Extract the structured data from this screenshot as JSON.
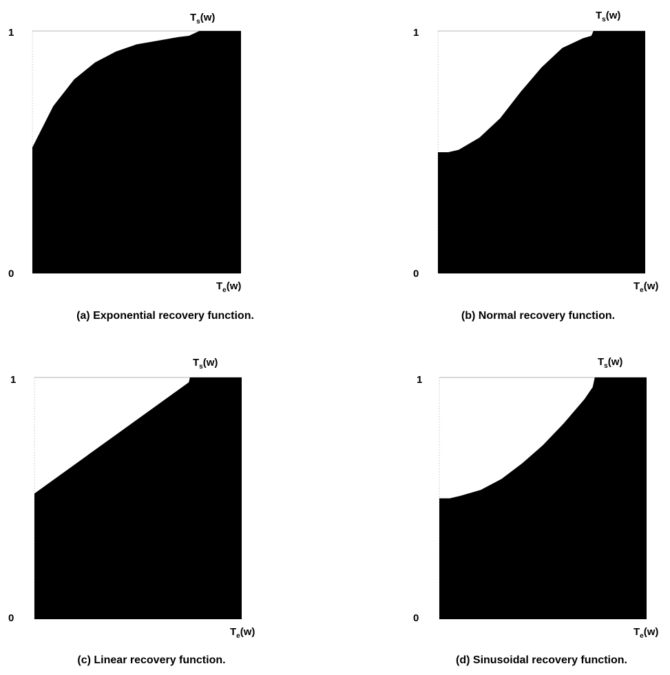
{
  "chart_data": [
    {
      "type": "area",
      "curve": "exponential",
      "caption": "(a) Exponential recovery function.",
      "y_tick_labels": [
        "0",
        "1"
      ],
      "top_label": {
        "main": "T",
        "sub": "s",
        "tail": "(w)"
      },
      "bottom_label": {
        "main": "T",
        "sub": "e",
        "tail": "(w)"
      },
      "x": [
        0,
        0.1,
        0.2,
        0.3,
        0.4,
        0.5,
        0.6,
        0.7,
        0.75,
        0.8,
        0.9,
        1.0
      ],
      "y": [
        0.52,
        0.69,
        0.8,
        0.87,
        0.915,
        0.945,
        0.96,
        0.975,
        0.98,
        1.0,
        1.0,
        1.0
      ],
      "ylim": [
        0,
        1
      ],
      "fill_color": "#000000",
      "grid": false
    },
    {
      "type": "area",
      "curve": "normal",
      "caption": "(b) Normal recovery function.",
      "y_tick_labels": [
        "0",
        "1"
      ],
      "top_label": {
        "main": "T",
        "sub": "s",
        "tail": "(w)"
      },
      "bottom_label": {
        "main": "T",
        "sub": "e",
        "tail": "(w)"
      },
      "x": [
        0,
        0.05,
        0.1,
        0.2,
        0.3,
        0.4,
        0.5,
        0.6,
        0.7,
        0.74,
        0.75,
        0.8,
        0.9,
        1.0
      ],
      "y": [
        0.5,
        0.5,
        0.51,
        0.56,
        0.64,
        0.75,
        0.85,
        0.93,
        0.97,
        0.98,
        1.0,
        1.0,
        1.0,
        1.0
      ],
      "ylim": [
        0,
        1
      ],
      "fill_color": "#000000",
      "grid": false
    },
    {
      "type": "area",
      "curve": "linear",
      "caption": "(c) Linear recovery function.",
      "y_tick_labels": [
        "0",
        "1"
      ],
      "top_label": {
        "main": "T",
        "sub": "s",
        "tail": "(w)"
      },
      "bottom_label": {
        "main": "T",
        "sub": "e",
        "tail": "(w)"
      },
      "x": [
        0,
        0.745,
        0.75,
        1.0
      ],
      "y": [
        0.52,
        0.98,
        1.0,
        1.0
      ],
      "ylim": [
        0,
        1
      ],
      "fill_color": "#000000",
      "grid": false
    },
    {
      "type": "area",
      "curve": "sinusoidal",
      "caption": "(d) Sinusoidal recovery function.",
      "y_tick_labels": [
        "0",
        "1"
      ],
      "top_label": {
        "main": "T",
        "sub": "s",
        "tail": "(w)"
      },
      "bottom_label": {
        "main": "T",
        "sub": "e",
        "tail": "(w)"
      },
      "x": [
        0,
        0.05,
        0.1,
        0.2,
        0.3,
        0.4,
        0.5,
        0.6,
        0.7,
        0.74,
        0.75,
        0.8,
        0.9,
        1.0
      ],
      "y": [
        0.5,
        0.5,
        0.51,
        0.535,
        0.58,
        0.645,
        0.72,
        0.81,
        0.91,
        0.96,
        1.0,
        1.0,
        1.0,
        1.0
      ],
      "ylim": [
        0,
        1
      ],
      "fill_color": "#000000",
      "grid": false
    }
  ]
}
